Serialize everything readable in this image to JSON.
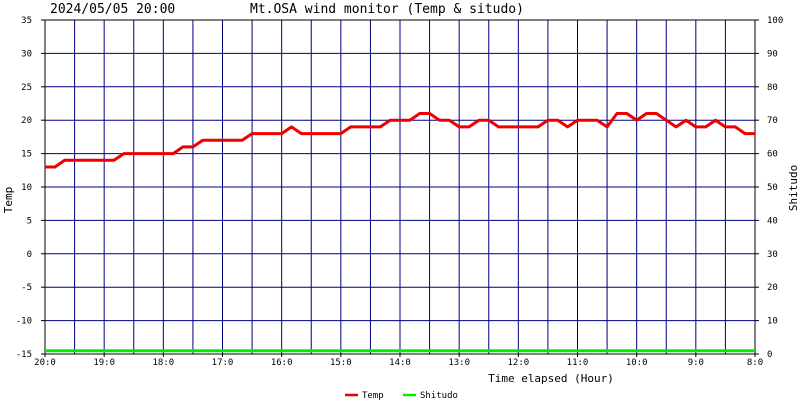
{
  "header": {
    "timestamp": "2024/05/05 20:00",
    "title": "Mt.OSA wind monitor (Temp & situdo)"
  },
  "chart_data": {
    "type": "line",
    "title": "Mt.OSA wind monitor (Temp & situdo)",
    "xlabel": "Time elapsed (Hour)",
    "ylabel_left": "Temp",
    "ylabel_right": "Shitudo",
    "ylim_left": [
      -15,
      35
    ],
    "ylim_right": [
      0,
      100
    ],
    "yticks_left": [
      "35",
      "30",
      "25",
      "20",
      "15",
      "10",
      "5",
      "0",
      "-5",
      "-10",
      "-15"
    ],
    "yticks_right": [
      "100",
      "90",
      "80",
      "70",
      "60",
      "50",
      "40",
      "30",
      "20",
      "10",
      "0"
    ],
    "xlim": [
      20,
      8
    ],
    "x_tick_labels": [
      "20:0",
      "19:0",
      "18:0",
      "17:0",
      "16:0",
      "15:0",
      "14:0",
      "13:0",
      "12:0",
      "11:0",
      "10:0",
      "9:0",
      "8:0"
    ],
    "grid": true,
    "legend_position": "bottom-center",
    "colors": {
      "background": "#ffffff",
      "grid": "#000080",
      "temp": "#ee0000",
      "shitudo": "#00ee00"
    },
    "series": [
      {
        "name": "Temp",
        "axis": "left",
        "x": [
          20.0,
          19.833,
          19.667,
          19.5,
          19.333,
          19.167,
          19.0,
          18.833,
          18.667,
          18.5,
          18.333,
          18.167,
          18.0,
          17.833,
          17.667,
          17.5,
          17.333,
          17.167,
          17.0,
          16.833,
          16.667,
          16.5,
          16.333,
          16.167,
          16.0,
          15.833,
          15.667,
          15.5,
          15.333,
          15.167,
          15.0,
          14.833,
          14.667,
          14.5,
          14.333,
          14.167,
          14.0,
          13.833,
          13.667,
          13.5,
          13.333,
          13.167,
          13.0,
          12.833,
          12.667,
          12.5,
          12.333,
          12.167,
          12.0,
          11.833,
          11.667,
          11.5,
          11.333,
          11.167,
          11.0,
          10.833,
          10.667,
          10.5,
          10.333,
          10.167,
          10.0,
          9.833,
          9.667,
          9.5,
          9.333,
          9.167,
          9.0,
          8.833,
          8.667,
          8.5,
          8.333,
          8.167,
          8.0
        ],
        "values": [
          13,
          13,
          14,
          14,
          14,
          14,
          14,
          14,
          15,
          15,
          15,
          15,
          15,
          15,
          16,
          16,
          17,
          17,
          17,
          17,
          17,
          18,
          18,
          18,
          18,
          19,
          18,
          18,
          18,
          18,
          18,
          19,
          19,
          19,
          19,
          20,
          20,
          20,
          21,
          21,
          20,
          20,
          19,
          19,
          20,
          20,
          19,
          19,
          19,
          19,
          19,
          20,
          20,
          19,
          20,
          20,
          20,
          19,
          21,
          21,
          20,
          21,
          21,
          20,
          19,
          20,
          19,
          19,
          20,
          19,
          19,
          18,
          18
        ]
      },
      {
        "name": "Shitudo",
        "axis": "right",
        "x": [
          20.0,
          8.0
        ],
        "values": [
          1,
          1
        ]
      }
    ]
  }
}
